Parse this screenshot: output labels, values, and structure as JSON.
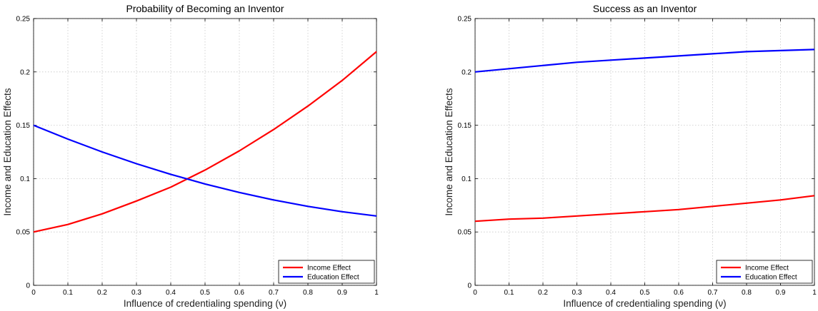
{
  "chart_data": [
    {
      "type": "line",
      "title": "Probability of Becoming an Inventor",
      "xlabel": "Influence of credentialing spending (ν)",
      "ylabel": "Income and Education Effects",
      "xlim": [
        0,
        1
      ],
      "ylim": [
        0,
        0.25
      ],
      "x_ticks": [
        "0",
        "0.1",
        "0.2",
        "0.3",
        "0.4",
        "0.5",
        "0.6",
        "0.7",
        "0.8",
        "0.9",
        "1"
      ],
      "y_ticks": [
        "0",
        "0.05",
        "0.1",
        "0.15",
        "0.2",
        "0.25"
      ],
      "grid": true,
      "legend_position": "bottom-right",
      "x": [
        0,
        0.1,
        0.2,
        0.3,
        0.4,
        0.5,
        0.6,
        0.7,
        0.8,
        0.9,
        1.0
      ],
      "series": [
        {
          "name": "Income Effect",
          "color": "#ff0000",
          "values": [
            0.05,
            0.057,
            0.067,
            0.079,
            0.092,
            0.108,
            0.126,
            0.146,
            0.168,
            0.192,
            0.219
          ]
        },
        {
          "name": "Education Effect",
          "color": "#0000ff",
          "values": [
            0.15,
            0.137,
            0.125,
            0.114,
            0.104,
            0.095,
            0.087,
            0.08,
            0.074,
            0.069,
            0.065
          ]
        }
      ]
    },
    {
      "type": "line",
      "title": "Success as an Inventor",
      "xlabel": "Influence of credentialing spending (ν)",
      "ylabel": "Income and Education Effects",
      "xlim": [
        0,
        1
      ],
      "ylim": [
        0,
        0.25
      ],
      "x_ticks": [
        "0",
        "0.1",
        "0.2",
        "0.3",
        "0.4",
        "0.5",
        "0.6",
        "0.7",
        "0.8",
        "0.9",
        "1"
      ],
      "y_ticks": [
        "0",
        "0.05",
        "0.1",
        "0.15",
        "0.2",
        "0.25"
      ],
      "grid": true,
      "legend_position": "bottom-right",
      "x": [
        0,
        0.1,
        0.2,
        0.3,
        0.4,
        0.5,
        0.6,
        0.7,
        0.8,
        0.9,
        1.0
      ],
      "series": [
        {
          "name": "Income Effect",
          "color": "#ff0000",
          "values": [
            0.06,
            0.062,
            0.063,
            0.065,
            0.067,
            0.069,
            0.071,
            0.074,
            0.077,
            0.08,
            0.084
          ]
        },
        {
          "name": "Education Effect",
          "color": "#0000ff",
          "values": [
            0.2,
            0.203,
            0.206,
            0.209,
            0.211,
            0.213,
            0.215,
            0.217,
            0.219,
            0.22,
            0.221
          ]
        }
      ]
    }
  ]
}
